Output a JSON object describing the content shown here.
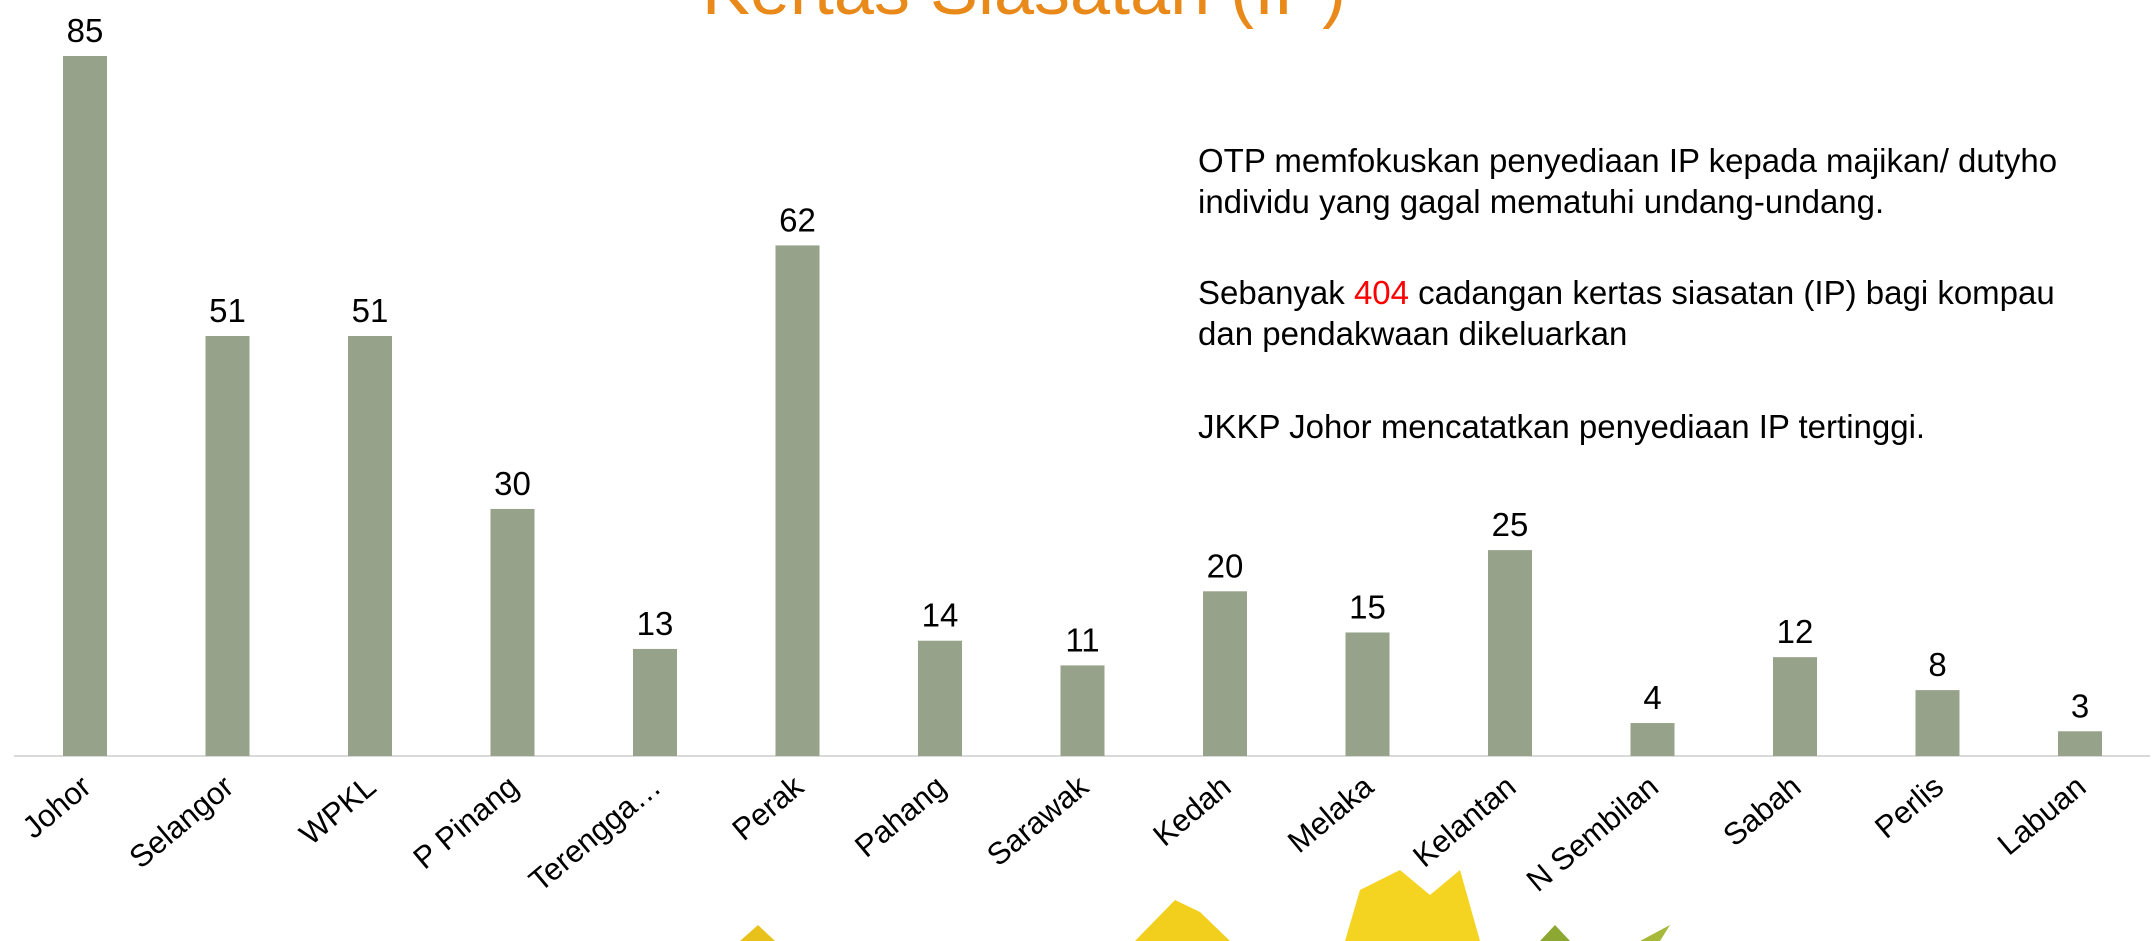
{
  "chart_data": {
    "type": "bar",
    "title": "Kertas Siasatan (IP)",
    "categories": [
      "Johor",
      "Selangor",
      "WPKL",
      "P Pinang",
      "Terengga…",
      "Perak",
      "Pahang",
      "Sarawak",
      "Kedah",
      "Melaka",
      "Kelantan",
      "N Sembilan",
      "Sabah",
      "Perlis",
      "Labuan"
    ],
    "values": [
      85,
      51,
      51,
      30,
      13,
      62,
      14,
      11,
      20,
      15,
      25,
      4,
      12,
      8,
      3
    ],
    "color": "#97a28a"
  },
  "notes": {
    "paragraph1": [
      "OTP memfokuskan penyediaan IP kepada majikan/ dutyho",
      "individu yang gagal mematuhi undang-undang."
    ],
    "paragraph2": {
      "line1": [
        "Sebanyak ",
        "404",
        " cadangan kertas siasatan (IP) bagi kompau"
      ],
      "line2": "dan pendakwaan dikeluarkan",
      "highlight_color": "#ff0000"
    },
    "paragraph3": "JKKP Johor mencatatkan penyediaan IP tertinggi."
  }
}
